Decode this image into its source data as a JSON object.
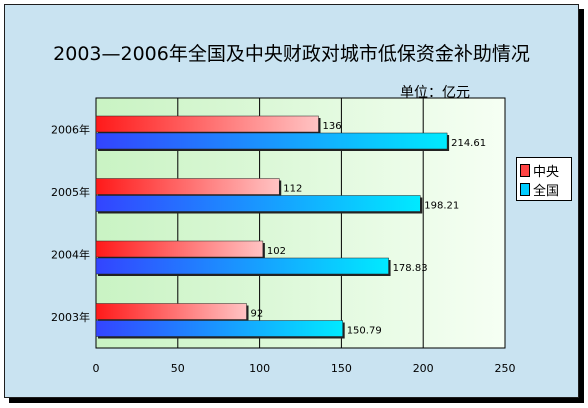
{
  "chart_data": {
    "type": "bar",
    "orientation": "horizontal",
    "title": "2003—2006年全国及中央财政对城市低保资金补助情况",
    "unit": "单位：亿元",
    "categories": [
      "2006年",
      "2005年",
      "2004年",
      "2003年"
    ],
    "series": [
      {
        "name": "中央",
        "color": "#ff4444",
        "values": [
          136,
          112,
          102,
          92
        ],
        "labels": [
          "136",
          "112",
          "102",
          "92"
        ]
      },
      {
        "name": "全国",
        "color": "#00ccff",
        "values": [
          214.61,
          198.21,
          178.83,
          150.79
        ],
        "labels": [
          "214.61",
          "198.21",
          "178.83",
          "150.79"
        ]
      }
    ],
    "xlim": [
      0,
      250
    ],
    "xticks": [
      "0",
      "50",
      "100",
      "150",
      "200",
      "250"
    ],
    "grid": true,
    "legend": "right"
  }
}
